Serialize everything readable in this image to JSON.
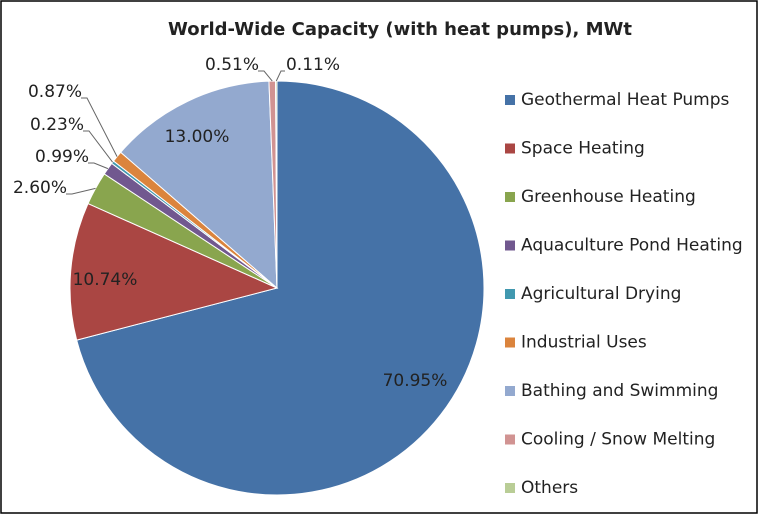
{
  "chart_data": {
    "type": "pie",
    "title": "World-Wide Capacity (with heat pumps), MWt",
    "categories": [
      "Geothermal Heat Pumps",
      "Space Heating",
      "Greenhouse Heating",
      "Aquaculture Pond Heating",
      "Agricultural Drying",
      "Industrial Uses",
      "Bathing and Swimming",
      "Cooling / Snow Melting",
      "Others"
    ],
    "values": [
      70.95,
      10.74,
      2.6,
      0.99,
      0.23,
      0.87,
      13.0,
      0.51,
      0.11
    ],
    "value_labels": [
      "70.95%",
      "10.74%",
      "2.60%",
      "0.99%",
      "0.23%",
      "0.87%",
      "13.00%",
      "0.51%",
      "0.11%"
    ],
    "colors": [
      "#4572a7",
      "#aa4643",
      "#89a54e",
      "#71588f",
      "#4198af",
      "#db843d",
      "#93a9cf",
      "#d19392",
      "#b9cd96"
    ],
    "legend": "right"
  }
}
